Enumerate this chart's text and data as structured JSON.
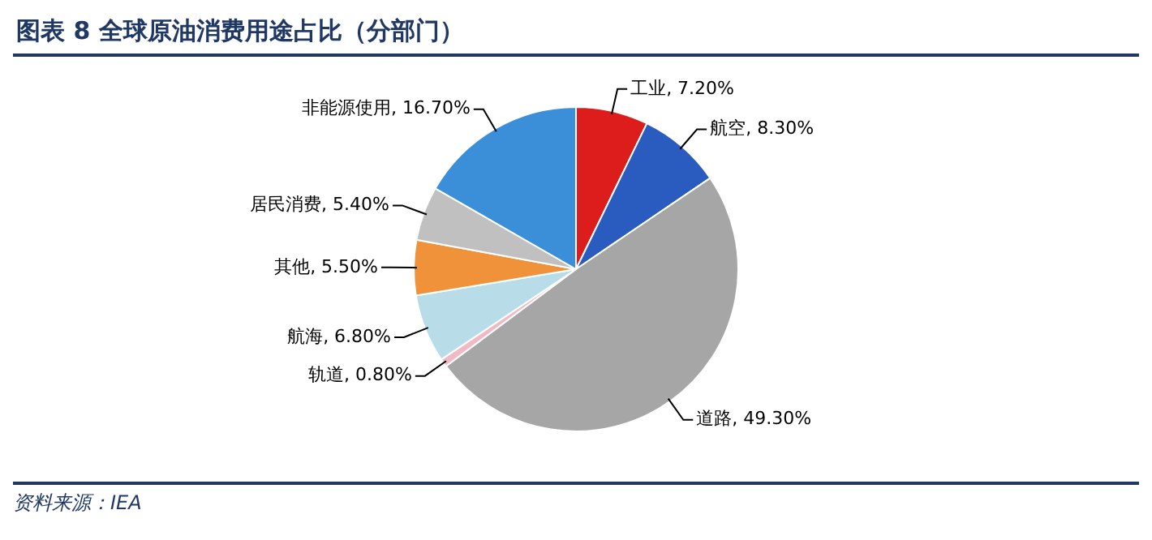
{
  "chart_data": {
    "type": "pie",
    "title": "图表 8   全球原油消费用途占比（分部门）",
    "categories": [
      "工业",
      "航空",
      "道路",
      "轨道",
      "航海",
      "其他",
      "居民消费",
      "非能源使用"
    ],
    "values": [
      7.2,
      8.3,
      49.3,
      0.8,
      6.8,
      5.5,
      5.4,
      16.7
    ],
    "value_labels": [
      "7.20%",
      "8.30%",
      "49.30%",
      "0.80%",
      "6.80%",
      "5.50%",
      "5.40%",
      "16.70%"
    ],
    "colors": [
      "#dd1c1c",
      "#2a5cbf",
      "#a6a6a6",
      "#f2b8c6",
      "#b8dde9",
      "#f0923a",
      "#c0c0c0",
      "#3a8fd8"
    ],
    "legend": false,
    "annotations": [
      "资料来源：IEA"
    ]
  }
}
